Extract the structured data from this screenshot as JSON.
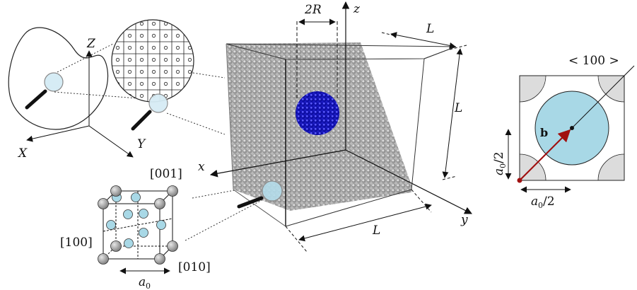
{
  "panel_left": {
    "axis_Z": "Z",
    "axis_X": "X",
    "axis_Y": "Y"
  },
  "panel_cell": {
    "dir_001": "[001]",
    "dir_100": "[100]",
    "dir_010": "[010]",
    "lattice_a": "a",
    "lattice_sub": "0"
  },
  "panel_box": {
    "diameter": "2R",
    "axis_z": "z",
    "axis_x": "x",
    "axis_y": "y",
    "length_top": "L",
    "length_right": "L",
    "length_bottom": "L"
  },
  "panel_right": {
    "direction": "< 100 >",
    "burgers": "b",
    "half_a_left": "a",
    "half_a_left_sub": "0",
    "half_a_left_den": "/2",
    "half_a_bottom": "a",
    "half_a_bottom_sub": "0",
    "half_a_bottom_den": "/2"
  },
  "colors": {
    "matrix_atom": "#a9a9a9",
    "void_atom": "#1f1fd6",
    "interstitial": "#a8d8e6",
    "burgers_vector": "#a01010",
    "corner_fill": "#dcdcdc"
  }
}
